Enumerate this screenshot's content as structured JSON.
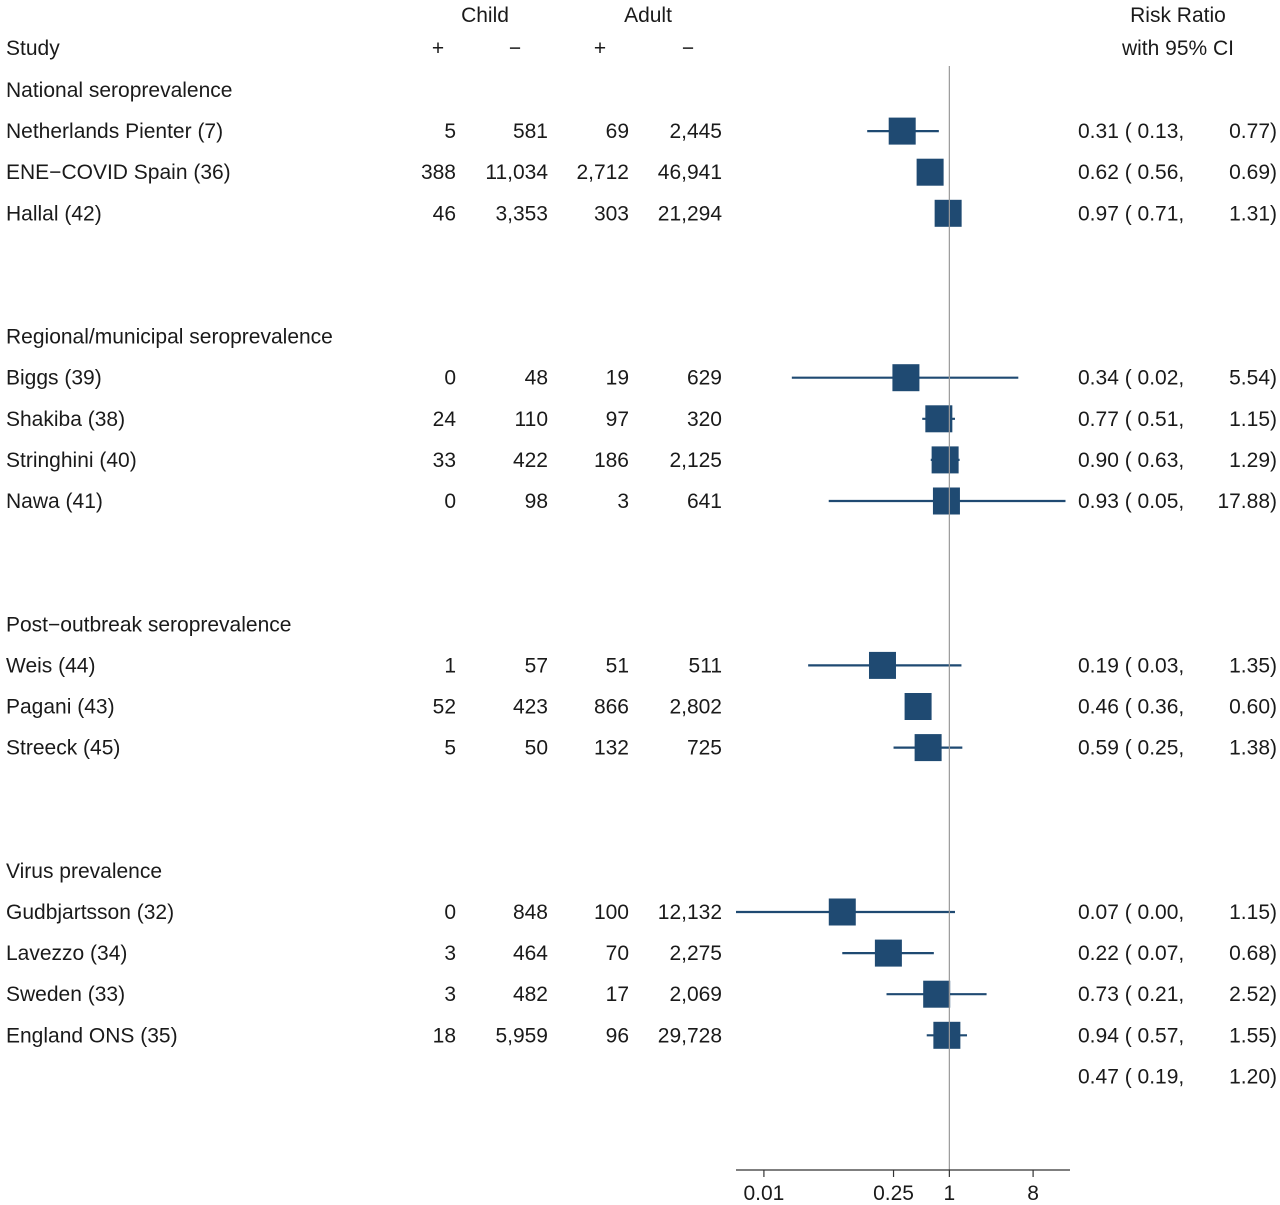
{
  "header": {
    "study_label": "Study",
    "child_label": "Child",
    "adult_label": "Adult",
    "plus": "+",
    "minus": "−",
    "rr_label_line1": "Risk Ratio",
    "rr_label_line2": "with 95% CI"
  },
  "chart_data": {
    "type": "forest",
    "x_scale": "log",
    "xlim": [
      0.005,
      20
    ],
    "reference_line": 1,
    "xticks": [
      {
        "value": 0.01,
        "label": "0.01"
      },
      {
        "value": 0.25,
        "label": "0.25"
      },
      {
        "value": 1,
        "label": "1"
      },
      {
        "value": 8,
        "label": "8"
      }
    ],
    "marker_color": "#1f4a72",
    "line_color": "#1f4a72",
    "groups": [
      {
        "name": "National seroprevalence",
        "studies": [
          {
            "label": "Netherlands Pienter (7)",
            "child_pos": "5",
            "child_neg": "581",
            "adult_pos": "69",
            "adult_neg": "2,445",
            "rr": 0.31,
            "lo": 0.13,
            "hi": 0.77,
            "ci_text": "0.31 ( 0.13,",
            "hi_text": "0.77)"
          },
          {
            "label": "ENE−COVID Spain (36)",
            "child_pos": "388",
            "child_neg": "11,034",
            "adult_pos": "2,712",
            "adult_neg": "46,941",
            "rr": 0.62,
            "lo": 0.56,
            "hi": 0.69,
            "ci_text": "0.62 ( 0.56,",
            "hi_text": "0.69)"
          },
          {
            "label": "Hallal (42)",
            "child_pos": "46",
            "child_neg": "3,353",
            "adult_pos": "303",
            "adult_neg": "21,294",
            "rr": 0.97,
            "lo": 0.71,
            "hi": 1.31,
            "ci_text": "0.97 ( 0.71,",
            "hi_text": "1.31)"
          }
        ]
      },
      {
        "name": "Regional/municipal seroprevalence",
        "studies": [
          {
            "label": "Biggs (39)",
            "child_pos": "0",
            "child_neg": "48",
            "adult_pos": "19",
            "adult_neg": "629",
            "rr": 0.34,
            "lo": 0.02,
            "hi": 5.54,
            "ci_text": "0.34 ( 0.02,",
            "hi_text": "5.54)"
          },
          {
            "label": "Shakiba (38)",
            "child_pos": "24",
            "child_neg": "110",
            "adult_pos": "97",
            "adult_neg": "320",
            "rr": 0.77,
            "lo": 0.51,
            "hi": 1.15,
            "ci_text": "0.77 ( 0.51,",
            "hi_text": "1.15)"
          },
          {
            "label": "Stringhini (40)",
            "child_pos": "33",
            "child_neg": "422",
            "adult_pos": "186",
            "adult_neg": "2,125",
            "rr": 0.9,
            "lo": 0.63,
            "hi": 1.29,
            "ci_text": "0.90 ( 0.63,",
            "hi_text": "1.29)"
          },
          {
            "label": "Nawa (41)",
            "child_pos": "0",
            "child_neg": "98",
            "adult_pos": "3",
            "adult_neg": "641",
            "rr": 0.93,
            "lo": 0.05,
            "hi": 17.88,
            "ci_text": "0.93 ( 0.05,",
            "hi_text": "17.88)"
          }
        ]
      },
      {
        "name": "Post−outbreak seroprevalence",
        "studies": [
          {
            "label": "Weis (44)",
            "child_pos": "1",
            "child_neg": "57",
            "adult_pos": "51",
            "adult_neg": "511",
            "rr": 0.19,
            "lo": 0.03,
            "hi": 1.35,
            "ci_text": "0.19 ( 0.03,",
            "hi_text": "1.35)"
          },
          {
            "label": "Pagani (43)",
            "child_pos": "52",
            "child_neg": "423",
            "adult_pos": "866",
            "adult_neg": "2,802",
            "rr": 0.46,
            "lo": 0.36,
            "hi": 0.6,
            "ci_text": "0.46 ( 0.36,",
            "hi_text": "0.60)"
          },
          {
            "label": "Streeck (45)",
            "child_pos": "5",
            "child_neg": "50",
            "adult_pos": "132",
            "adult_neg": "725",
            "rr": 0.59,
            "lo": 0.25,
            "hi": 1.38,
            "ci_text": "0.59 ( 0.25,",
            "hi_text": "1.38)"
          }
        ]
      },
      {
        "name": "Virus prevalence",
        "studies": [
          {
            "label": "Gudbjartsson  (32)",
            "child_pos": "0",
            "child_neg": "848",
            "adult_pos": "100",
            "adult_neg": "12,132",
            "rr": 0.07,
            "lo": 0.0,
            "hi": 1.15,
            "ci_text": "0.07 ( 0.00,",
            "hi_text": "1.15)"
          },
          {
            "label": "Lavezzo (34)",
            "child_pos": "3",
            "child_neg": "464",
            "adult_pos": "70",
            "adult_neg": "2,275",
            "rr": 0.22,
            "lo": 0.07,
            "hi": 0.68,
            "ci_text": "0.22 ( 0.07,",
            "hi_text": "0.68)"
          },
          {
            "label": "Sweden (33)",
            "child_pos": "3",
            "child_neg": "482",
            "adult_pos": "17",
            "adult_neg": "2,069",
            "rr": 0.73,
            "lo": 0.21,
            "hi": 2.52,
            "ci_text": "0.73 ( 0.21,",
            "hi_text": "2.52)"
          },
          {
            "label": "England ONS (35)",
            "child_pos": "18",
            "child_neg": "5,959",
            "adult_pos": "96",
            "adult_neg": "29,728",
            "rr": 0.94,
            "lo": 0.57,
            "hi": 1.55,
            "ci_text": "0.94 ( 0.57,",
            "hi_text": "1.55)"
          }
        ]
      }
    ],
    "pooled": {
      "rr": 0.47,
      "lo": 0.19,
      "hi": 1.2,
      "ci_text": "0.47 ( 0.19,",
      "hi_text": "1.20)"
    }
  }
}
